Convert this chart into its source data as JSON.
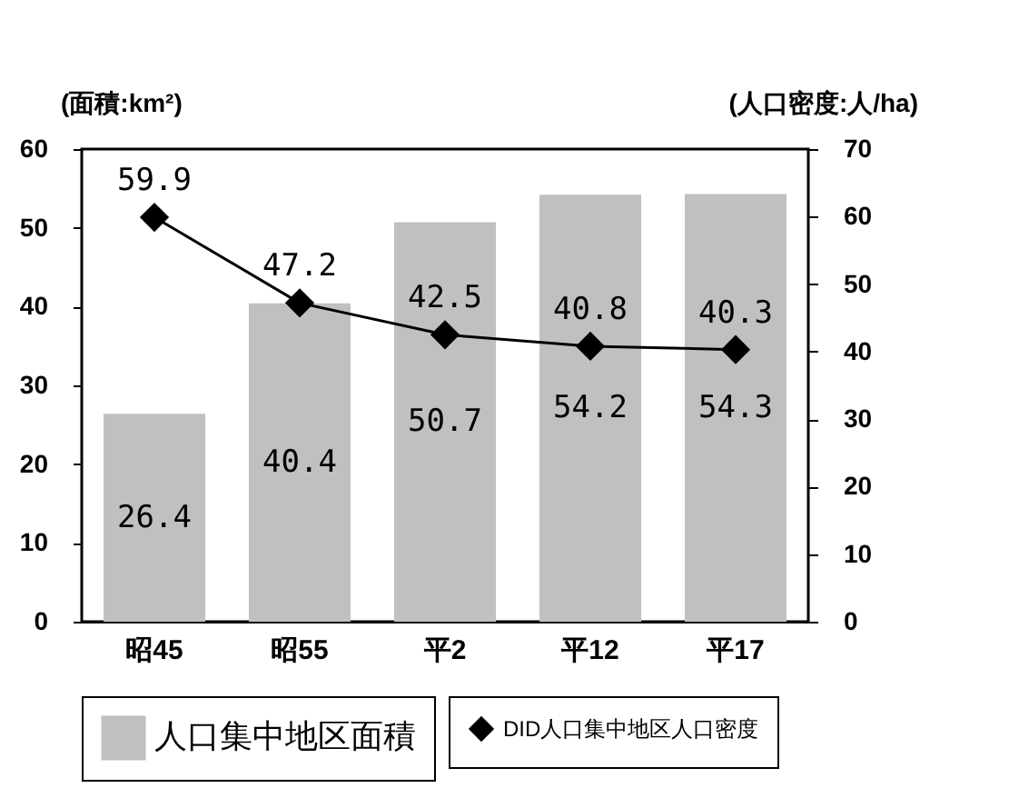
{
  "chart_data": {
    "type": "bar",
    "ylabel": "(面積:km²)",
    "y2label": "(人口密度:人/ha)",
    "categories": [
      "昭45",
      "昭55",
      "平2",
      "平12",
      "平17"
    ],
    "series": [
      {
        "name": "人口集中地区面積",
        "color": "#c0c0c0",
        "values": [
          26.4,
          40.4,
          50.7,
          54.2,
          54.3
        ]
      },
      {
        "name": "DID人口集中地区人口密度",
        "type": "line",
        "axis": "y2",
        "color": "#000000",
        "marker": "diamond",
        "values": [
          59.9,
          47.2,
          42.5,
          40.8,
          40.3
        ]
      }
    ],
    "ylim": [
      0,
      60
    ],
    "yticks": [
      0,
      10,
      20,
      30,
      40,
      50,
      60
    ],
    "y2lim": [
      0,
      70
    ],
    "y2ticks": [
      0,
      10,
      20,
      30,
      40,
      50,
      60,
      70
    ],
    "data_labels": true,
    "legend": "bottom"
  }
}
